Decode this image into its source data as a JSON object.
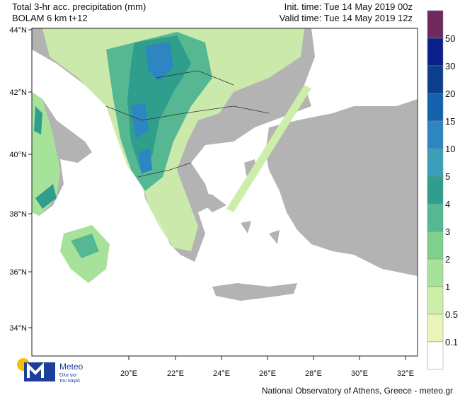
{
  "header": {
    "title": "Total 3-hr acc. precipitation (mm)",
    "model": "BOLAM 6 km t+12",
    "init_time": "Init. time: Tue 14 May 2019 00z",
    "valid_time": "Valid time: Tue 14 May 2019 12z"
  },
  "map": {
    "lat_labels": [
      "44°N",
      "42°N",
      "40°N",
      "38°N",
      "36°N",
      "34°N"
    ],
    "lon_labels": [
      "20°E",
      "22°E",
      "24°E",
      "26°E",
      "28°E",
      "30°E",
      "32°E"
    ]
  },
  "legend": {
    "levels": [
      "50",
      "30",
      "20",
      "15",
      "10",
      "5",
      "4",
      "3",
      "2",
      "1",
      "0.5",
      "0.1"
    ],
    "colors": [
      "#6e2a5f",
      "#0c1f8a",
      "#0b3e8c",
      "#1461ad",
      "#2d86c2",
      "#3c9fba",
      "#2f9e8d",
      "#56b893",
      "#7fd08d",
      "#a7e29b",
      "#cdeea9",
      "#e9f5b8",
      "#ffffff"
    ]
  },
  "logo": {
    "name": "Meteo",
    "slogan_1": "Όλα για",
    "slogan_2": "τον καιρό"
  },
  "footer": "National Observatory of Athens, Greece - meteo.gr"
}
